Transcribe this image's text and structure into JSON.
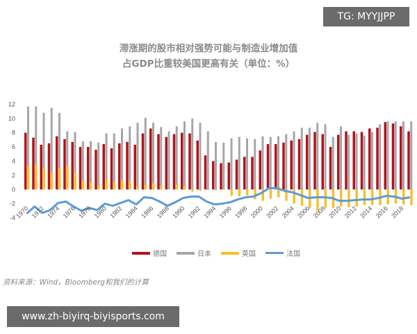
{
  "watermark_top": "TG: MYYJJPP",
  "watermark_bottom": "www.zh-biyirq-biyisports.com",
  "source": "资料来源：Wind，Bloomberg和我们的计算",
  "chart_data": {
    "type": "bar",
    "title_line1": "滞涨期的股市相对强势可能与制造业增加值",
    "title_line2": "占GDP比重较美国更高有关（单位：%）",
    "ylim": [
      -4,
      12
    ],
    "yticks": [
      -4,
      -2,
      0,
      2,
      4,
      6,
      8,
      10,
      12
    ],
    "grid": false,
    "legend": "bottom",
    "x": [
      1970,
      1971,
      1972,
      1973,
      1974,
      1975,
      1976,
      1977,
      1978,
      1979,
      1980,
      1981,
      1982,
      1983,
      1984,
      1985,
      1986,
      1987,
      1988,
      1989,
      1990,
      1991,
      1992,
      1993,
      1994,
      1995,
      1996,
      1997,
      1998,
      1999,
      2000,
      2001,
      2002,
      2003,
      2004,
      2005,
      2006,
      2007,
      2008,
      2009,
      2010,
      2011,
      2012,
      2013,
      2014,
      2015,
      2016,
      2017,
      2018,
      2019
    ],
    "xtick_labels": [
      "1970",
      "1972",
      "1974",
      "1976",
      "1978",
      "1980",
      "1982",
      "1984",
      "1986",
      "1988",
      "1990",
      "1992",
      "1994",
      "1996",
      "1998",
      "2000",
      "2002",
      "2004",
      "2006",
      "2008",
      "2010",
      "2012",
      "2014",
      "2016",
      "2018"
    ],
    "series": [
      {
        "name": "德国",
        "kind": "bar",
        "color": "#b5121b",
        "values": [
          8.0,
          7.3,
          6.3,
          6.5,
          7.5,
          7.1,
          6.7,
          6.0,
          6.0,
          5.6,
          6.4,
          5.8,
          6.5,
          6.7,
          6.3,
          7.9,
          8.6,
          7.8,
          7.4,
          7.8,
          8.0,
          7.9,
          6.9,
          4.8,
          4.0,
          3.7,
          3.8,
          4.2,
          4.6,
          4.6,
          5.5,
          6.4,
          6.4,
          6.6,
          6.9,
          7.1,
          7.7,
          8.1,
          7.8,
          6.0,
          7.7,
          8.2,
          8.2,
          8.1,
          8.6,
          8.7,
          9.5,
          9.3,
          8.9,
          8.2
        ]
      },
      {
        "name": "日本",
        "kind": "bar",
        "color": "#a6a6a6",
        "values": [
          11.7,
          11.7,
          10.8,
          11.5,
          10.8,
          8.2,
          8.1,
          6.8,
          6.8,
          6.6,
          7.9,
          7.9,
          8.6,
          8.9,
          9.4,
          10.1,
          9.4,
          8.8,
          8.2,
          8.9,
          9.6,
          10.0,
          9.4,
          8.2,
          6.7,
          6.6,
          7.2,
          7.4,
          7.2,
          7.1,
          7.5,
          7.4,
          7.5,
          7.8,
          8.2,
          8.7,
          8.7,
          9.4,
          9.2,
          7.4,
          8.9,
          7.7,
          7.9,
          7.6,
          8.1,
          9.2,
          9.6,
          9.6,
          9.6,
          9.6
        ]
      },
      {
        "name": "英国",
        "kind": "bar",
        "color": "#f5c02a",
        "values": [
          3.4,
          3.5,
          2.9,
          2.4,
          3.0,
          3.3,
          2.3,
          1.2,
          0.95,
          0.55,
          1.4,
          1.0,
          1.3,
          1.2,
          0.4,
          0.65,
          0.9,
          0.45,
          0.0,
          0.7,
          0.5,
          -0.3,
          -0.2,
          -0.1,
          -0.1,
          -0.05,
          -0.9,
          -1.0,
          -0.85,
          -1.4,
          -1.6,
          -1.3,
          -1.1,
          -1.6,
          -2.0,
          -2.3,
          -2.6,
          -3.0,
          -2.6,
          -2.6,
          -2.4,
          -2.5,
          -2.4,
          -2.2,
          -2.2,
          -2.2,
          -2.1,
          -2.0,
          -2.1,
          -2.2
        ]
      },
      {
        "name": "法国",
        "kind": "line",
        "color": "#5b9bd5",
        "values": [
          -3.4,
          -2.4,
          -3.3,
          -2.9,
          -1.9,
          -1.7,
          -2.4,
          -3.0,
          -2.6,
          -2.9,
          -2.0,
          -2.3,
          -1.9,
          -1.5,
          -2.1,
          -1.1,
          -1.2,
          -1.7,
          -2.3,
          -1.8,
          -1.2,
          -1.0,
          -1.0,
          -1.7,
          -2.1,
          -2.0,
          -1.8,
          -1.4,
          -1.1,
          -1.0,
          -0.5,
          0.2,
          0.2,
          -0.2,
          -0.4,
          -0.8,
          -1.2,
          -1.1,
          -1.1,
          -1.2,
          -1.6,
          -1.6,
          -1.5,
          -1.4,
          -1.4,
          -1.2,
          -0.9,
          -1.0,
          -1.3,
          -1.1
        ]
      }
    ]
  }
}
